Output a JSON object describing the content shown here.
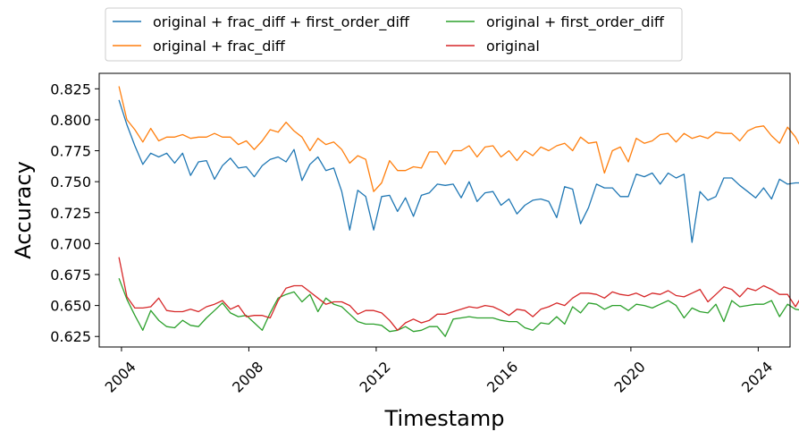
{
  "chart_data": {
    "type": "line",
    "xlabel": "Timestamp",
    "ylabel": "Accuracy",
    "xlim": [
      2003.3,
      2025.0
    ],
    "ylim": [
      0.6165,
      0.8375
    ],
    "x_ticks": [
      2004,
      2008,
      2012,
      2016,
      2020,
      2024
    ],
    "y_ticks": [
      0.625,
      0.65,
      0.675,
      0.7,
      0.725,
      0.75,
      0.775,
      0.8,
      0.825
    ],
    "y_tick_labels": [
      "0.625",
      "0.650",
      "0.675",
      "0.700",
      "0.725",
      "0.750",
      "0.775",
      "0.800",
      "0.825"
    ],
    "grid": false,
    "legend_placement": "top-center, above plot, 2 columns",
    "x_start": 2003.92,
    "x_step": 0.25,
    "series": [
      {
        "name": "original + frac_diff + first_order_diff",
        "color": "#1f77b4",
        "values": [
          0.816,
          0.796,
          0.779,
          0.764,
          0.773,
          0.77,
          0.773,
          0.765,
          0.773,
          0.755,
          0.766,
          0.767,
          0.752,
          0.763,
          0.769,
          0.761,
          0.762,
          0.754,
          0.763,
          0.768,
          0.77,
          0.766,
          0.776,
          0.751,
          0.764,
          0.77,
          0.759,
          0.761,
          0.742,
          0.711,
          0.743,
          0.738,
          0.711,
          0.738,
          0.739,
          0.726,
          0.737,
          0.722,
          0.739,
          0.741,
          0.748,
          0.747,
          0.748,
          0.737,
          0.75,
          0.734,
          0.741,
          0.742,
          0.731,
          0.736,
          0.724,
          0.731,
          0.735,
          0.736,
          0.734,
          0.721,
          0.746,
          0.744,
          0.716,
          0.729,
          0.748,
          0.745,
          0.745,
          0.738,
          0.738,
          0.756,
          0.754,
          0.757,
          0.748,
          0.757,
          0.753,
          0.756,
          0.701,
          0.742,
          0.735,
          0.738,
          0.753,
          0.753,
          0.747,
          0.742,
          0.737,
          0.745,
          0.736,
          0.752,
          0.748,
          0.749,
          0.749,
          0.745,
          0.744
        ]
      },
      {
        "name": "original + frac_diff",
        "color": "#ff7f0e",
        "values": [
          0.827,
          0.8,
          0.792,
          0.782,
          0.793,
          0.783,
          0.786,
          0.786,
          0.788,
          0.785,
          0.786,
          0.786,
          0.789,
          0.786,
          0.786,
          0.78,
          0.783,
          0.776,
          0.783,
          0.792,
          0.79,
          0.798,
          0.791,
          0.786,
          0.775,
          0.785,
          0.78,
          0.782,
          0.776,
          0.765,
          0.771,
          0.768,
          0.742,
          0.749,
          0.767,
          0.759,
          0.759,
          0.762,
          0.761,
          0.774,
          0.774,
          0.764,
          0.775,
          0.775,
          0.779,
          0.77,
          0.778,
          0.779,
          0.77,
          0.775,
          0.767,
          0.775,
          0.771,
          0.778,
          0.775,
          0.779,
          0.781,
          0.775,
          0.786,
          0.781,
          0.782,
          0.757,
          0.775,
          0.778,
          0.766,
          0.785,
          0.781,
          0.783,
          0.788,
          0.789,
          0.782,
          0.789,
          0.785,
          0.787,
          0.785,
          0.79,
          0.789,
          0.789,
          0.783,
          0.791,
          0.794,
          0.795,
          0.787,
          0.781,
          0.794,
          0.786,
          0.774,
          0.791,
          0.776
        ]
      },
      {
        "name": "original + first_order_diff",
        "color": "#2ca02c",
        "values": [
          0.672,
          0.655,
          0.642,
          0.63,
          0.646,
          0.638,
          0.633,
          0.632,
          0.638,
          0.634,
          0.633,
          0.64,
          0.646,
          0.652,
          0.644,
          0.641,
          0.642,
          0.636,
          0.63,
          0.644,
          0.656,
          0.659,
          0.661,
          0.653,
          0.659,
          0.645,
          0.656,
          0.651,
          0.649,
          0.643,
          0.637,
          0.635,
          0.635,
          0.634,
          0.629,
          0.63,
          0.633,
          0.629,
          0.63,
          0.633,
          0.633,
          0.625,
          0.639,
          0.64,
          0.641,
          0.64,
          0.64,
          0.64,
          0.638,
          0.637,
          0.637,
          0.632,
          0.63,
          0.636,
          0.635,
          0.641,
          0.635,
          0.649,
          0.644,
          0.652,
          0.651,
          0.647,
          0.65,
          0.65,
          0.646,
          0.651,
          0.65,
          0.648,
          0.651,
          0.654,
          0.65,
          0.64,
          0.648,
          0.645,
          0.644,
          0.651,
          0.637,
          0.654,
          0.649,
          0.65,
          0.651,
          0.651,
          0.654,
          0.641,
          0.651,
          0.647,
          0.646,
          0.65,
          0.648
        ]
      },
      {
        "name": "original",
        "color": "#d62728",
        "values": [
          0.689,
          0.657,
          0.648,
          0.648,
          0.649,
          0.656,
          0.646,
          0.645,
          0.645,
          0.647,
          0.645,
          0.649,
          0.651,
          0.654,
          0.647,
          0.65,
          0.641,
          0.642,
          0.642,
          0.64,
          0.654,
          0.664,
          0.666,
          0.666,
          0.661,
          0.656,
          0.651,
          0.653,
          0.653,
          0.65,
          0.643,
          0.646,
          0.646,
          0.644,
          0.638,
          0.63,
          0.636,
          0.639,
          0.636,
          0.638,
          0.643,
          0.643,
          0.645,
          0.647,
          0.649,
          0.648,
          0.65,
          0.649,
          0.646,
          0.642,
          0.647,
          0.646,
          0.641,
          0.647,
          0.649,
          0.652,
          0.65,
          0.656,
          0.66,
          0.66,
          0.659,
          0.656,
          0.661,
          0.659,
          0.658,
          0.66,
          0.657,
          0.66,
          0.659,
          0.662,
          0.658,
          0.657,
          0.66,
          0.663,
          0.653,
          0.659,
          0.665,
          0.663,
          0.657,
          0.664,
          0.662,
          0.666,
          0.663,
          0.659,
          0.659,
          0.649,
          0.66,
          0.659,
          0.66
        ]
      }
    ]
  }
}
